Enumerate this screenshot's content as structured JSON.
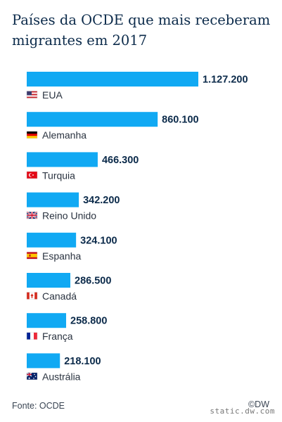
{
  "chart_data": {
    "type": "bar",
    "orientation": "horizontal",
    "title": "Países da OCDE que mais receberam migrantes em 2017",
    "categories": [
      "EUA",
      "Alemanha",
      "Turquia",
      "Reino Unido",
      "Espanha",
      "Canadá",
      "França",
      "Austrália"
    ],
    "values": [
      1127200,
      860100,
      466300,
      342200,
      324100,
      286500,
      258800,
      218100
    ],
    "value_labels": [
      "1.127.200",
      "860.100",
      "466.300",
      "342.200",
      "324.100",
      "286.500",
      "258.800",
      "218.100"
    ],
    "flags": [
      "flag-us-icon",
      "flag-de-icon",
      "flag-tr-icon",
      "flag-uk-icon",
      "flag-es-icon",
      "flag-ca-icon",
      "flag-fr-icon",
      "flag-au-icon"
    ],
    "bar_color": "#11a9f3",
    "grid": false
  },
  "footer": {
    "source": "Fonte: OCDE",
    "brand": "©DW",
    "watermark": "static.dw.com"
  }
}
